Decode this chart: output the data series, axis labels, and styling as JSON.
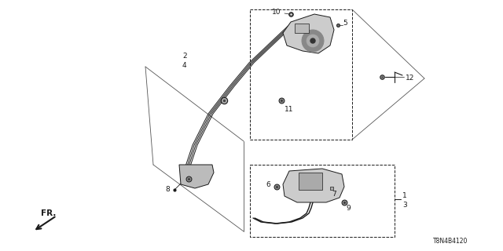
{
  "bg_color": "#ffffff",
  "line_color": "#1a1a1a",
  "diagram_code": "T8N4B4120",
  "fr_label": "FR.",
  "figsize": [
    6.4,
    3.2
  ],
  "dpi": 100
}
